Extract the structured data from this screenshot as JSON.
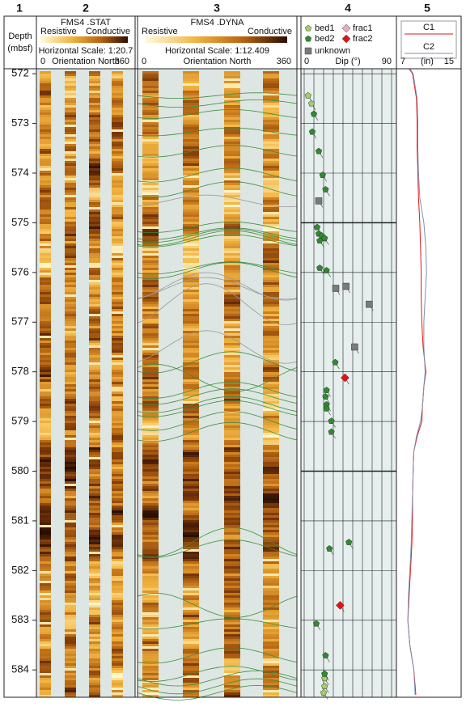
{
  "column_numbers": [
    "1",
    "2",
    "3",
    "4",
    "5"
  ],
  "chart_data": [
    {
      "type": "depth",
      "title": "Depth",
      "subtitle": "(mbsf)",
      "ylim": [
        571.9,
        584.55
      ],
      "yticks": [
        572,
        573,
        574,
        575,
        576,
        577,
        578,
        579,
        580,
        581,
        582,
        583,
        584
      ]
    },
    {
      "type": "image",
      "title": "FMS4 .STAT",
      "colorbar_labels": [
        "Resistive",
        "Conductive"
      ],
      "scale_label": "Horizontal Scale: 1:20.7",
      "xlabel": "Orientation North",
      "xlim": [
        0,
        360
      ],
      "xticks": [
        0,
        360
      ]
    },
    {
      "type": "image",
      "title": "FMS4 .DYNA",
      "colorbar_labels": [
        "Resistive",
        "Conductive"
      ],
      "scale_label": "Horizontal Scale: 1:12.409",
      "xlabel": "Orientation North",
      "xlim": [
        0,
        360
      ],
      "xticks": [
        0,
        360
      ]
    },
    {
      "type": "scatter",
      "xlabel": "Dip (°)",
      "xlim": [
        0,
        90
      ],
      "xticks": [
        0,
        90
      ],
      "xgrid": [
        0,
        10,
        20,
        30,
        40,
        50,
        60,
        70,
        80,
        90
      ],
      "series": [
        {
          "name": "bed1",
          "color": "#9fd060",
          "marker": "pentagon",
          "x": [
            4,
            7.5,
            21,
            21,
            20
          ],
          "y": [
            572.44,
            572.6,
            584.17,
            584.33,
            584.46
          ]
        },
        {
          "name": "bed2",
          "color": "#2e8b2e",
          "marker": "pentagon",
          "x": [
            10,
            8.3,
            15,
            19,
            22,
            13.3,
            15,
            18,
            21,
            16,
            16,
            23,
            32,
            23,
            22,
            23,
            23,
            28,
            28,
            46,
            26,
            12.5,
            22,
            21
          ],
          "y": [
            572.81,
            573.17,
            573.56,
            574.04,
            574.33,
            575.09,
            575.22,
            575.26,
            575.31,
            575.36,
            575.91,
            575.96,
            577.81,
            578.37,
            578.5,
            578.66,
            578.74,
            578.99,
            579.21,
            581.43,
            581.56,
            583.07,
            583.71,
            584.08
          ]
        },
        {
          "name": "unknown",
          "color": "#7a7a7a",
          "marker": "square",
          "x": [
            15,
            32.5,
            43,
            67,
            52
          ],
          "y": [
            574.56,
            576.32,
            576.28,
            576.64,
            577.5
          ]
        },
        {
          "name": "frac1",
          "color": "#f0a8b8",
          "marker": "diamond",
          "x": [],
          "y": []
        },
        {
          "name": "frac2",
          "color": "#e81010",
          "marker": "diamond",
          "x": [
            42,
            37
          ],
          "y": [
            578.12,
            582.7
          ]
        }
      ]
    },
    {
      "type": "line",
      "xlabel": "(in)",
      "xlim": [
        7,
        15
      ],
      "xticks": [
        7,
        15
      ],
      "y": [
        571.9,
        572,
        572.5,
        573,
        573.5,
        574,
        574.5,
        575,
        575.5,
        576,
        576.5,
        577,
        577.5,
        578,
        578.3,
        578.7,
        579,
        579.3,
        579.6,
        580,
        580.5,
        581,
        581.5,
        582,
        582.5,
        583,
        583.5,
        584,
        584.5
      ],
      "series": [
        {
          "name": "C1",
          "color": "#e01818",
          "values": [
            8.3,
            8.8,
            9.4,
            9.5,
            9.5,
            9.6,
            9.7,
            9.9,
            10.0,
            10.1,
            10.1,
            10.2,
            10.4,
            10.8,
            10.5,
            10.3,
            10.2,
            9.5,
            9.0,
            8.9,
            8.8,
            8.8,
            8.7,
            8.5,
            8.3,
            8.1,
            8.4,
            9.0,
            9.3
          ]
        },
        {
          "name": "C2",
          "color": "#8090b0",
          "values": [
            8.4,
            8.9,
            9.5,
            9.6,
            9.6,
            9.7,
            9.9,
            10.5,
            10.8,
            10.9,
            10.7,
            10.5,
            10.5,
            10.7,
            10.5,
            10.3,
            10.0,
            9.4,
            9.0,
            8.9,
            8.8,
            8.7,
            8.6,
            8.4,
            8.2,
            8.1,
            8.4,
            9.0,
            9.2
          ]
        }
      ]
    }
  ]
}
